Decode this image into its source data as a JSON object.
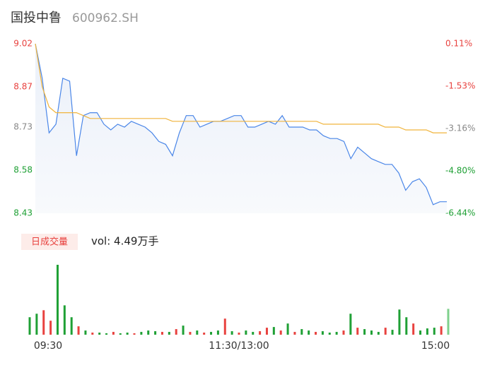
{
  "chart_data": [
    {
      "type": "line",
      "title": "国投中鲁",
      "subtitle": "600962.SH",
      "xlim": [
        0,
        240
      ],
      "x": [
        0,
        4,
        8,
        12,
        16,
        20,
        24,
        28,
        32,
        36,
        40,
        44,
        48,
        52,
        56,
        60,
        64,
        68,
        72,
        76,
        80,
        84,
        88,
        92,
        96,
        100,
        104,
        108,
        112,
        116,
        120,
        124,
        128,
        132,
        136,
        140,
        144,
        148,
        152,
        156,
        160,
        164,
        168,
        172,
        176,
        180,
        184,
        188,
        192,
        196,
        200,
        204,
        208,
        212,
        216,
        220,
        224,
        228,
        232,
        236,
        240
      ],
      "ylim": [
        8.43,
        9.02
      ],
      "yticks": [
        {
          "value": 8.43,
          "label": "8.43"
        },
        {
          "value": 8.58,
          "label": "8.58"
        },
        {
          "value": 8.73,
          "label": "8.73"
        },
        {
          "value": 8.87,
          "label": "8.87"
        },
        {
          "value": 9.02,
          "label": "9.02"
        }
      ],
      "ytick_colors": [
        "#1fa035",
        "#1fa035",
        "#888888",
        "#e8423f",
        "#e8423f"
      ],
      "y2lim": [
        -6.44,
        0.11
      ],
      "y2ticks": [
        {
          "value": -6.44,
          "label": "-6.44%"
        },
        {
          "value": -4.8,
          "label": "-4.80%"
        },
        {
          "value": -3.16,
          "label": "-3.16%"
        },
        {
          "value": -1.53,
          "label": "-1.53%"
        },
        {
          "value": 0.11,
          "label": "0.11%"
        }
      ],
      "y2tick_colors": [
        "#1fa035",
        "#1fa035",
        "#888888",
        "#e8423f",
        "#e8423f"
      ],
      "series": [
        {
          "name": "price",
          "color": "#4a86e8",
          "values": [
            9.02,
            8.9,
            8.71,
            8.74,
            8.9,
            8.89,
            8.63,
            8.77,
            8.78,
            8.78,
            8.74,
            8.72,
            8.74,
            8.73,
            8.75,
            8.74,
            8.73,
            8.71,
            8.68,
            8.67,
            8.63,
            8.71,
            8.77,
            8.77,
            8.73,
            8.74,
            8.75,
            8.75,
            8.76,
            8.77,
            8.77,
            8.73,
            8.73,
            8.74,
            8.75,
            8.74,
            8.77,
            8.73,
            8.73,
            8.73,
            8.72,
            8.72,
            8.7,
            8.69,
            8.69,
            8.68,
            8.62,
            8.66,
            8.64,
            8.62,
            8.61,
            8.6,
            8.6,
            8.57,
            8.51,
            8.54,
            8.55,
            8.52,
            8.46,
            8.47,
            8.47
          ]
        },
        {
          "name": "average",
          "color": "#f0b43c",
          "values": [
            9.02,
            8.87,
            8.8,
            8.78,
            8.78,
            8.78,
            8.78,
            8.77,
            8.76,
            8.76,
            8.76,
            8.76,
            8.76,
            8.76,
            8.76,
            8.76,
            8.76,
            8.76,
            8.76,
            8.76,
            8.75,
            8.75,
            8.75,
            8.75,
            8.75,
            8.75,
            8.75,
            8.75,
            8.75,
            8.75,
            8.75,
            8.75,
            8.75,
            8.75,
            8.75,
            8.75,
            8.75,
            8.75,
            8.75,
            8.75,
            8.75,
            8.75,
            8.74,
            8.74,
            8.74,
            8.74,
            8.74,
            8.74,
            8.74,
            8.74,
            8.74,
            8.73,
            8.73,
            8.73,
            8.72,
            8.72,
            8.72,
            8.72,
            8.71,
            8.71,
            8.71
          ]
        }
      ]
    },
    {
      "type": "bar",
      "badge": "日成交量",
      "label": "vol: 4.49万手",
      "xlim": [
        0,
        240
      ],
      "xticks": [
        {
          "value": 0,
          "label": "09:30"
        },
        {
          "value": 120,
          "label": "11:30/13:00"
        },
        {
          "value": 240,
          "label": "15:00"
        }
      ],
      "x": [
        0,
        4,
        8,
        12,
        16,
        20,
        24,
        28,
        32,
        36,
        40,
        44,
        48,
        52,
        56,
        60,
        64,
        68,
        72,
        76,
        80,
        84,
        88,
        92,
        96,
        100,
        104,
        108,
        112,
        116,
        120,
        124,
        128,
        132,
        136,
        140,
        144,
        148,
        152,
        156,
        160,
        164,
        168,
        172,
        176,
        180,
        184,
        188,
        192,
        196,
        200,
        204,
        208,
        212,
        216,
        220,
        224,
        228,
        232,
        236,
        240
      ],
      "ylim": [
        0,
        1000
      ],
      "values": [
        250,
        300,
        350,
        200,
        1000,
        420,
        250,
        120,
        60,
        30,
        30,
        20,
        40,
        20,
        30,
        20,
        40,
        60,
        50,
        40,
        40,
        80,
        130,
        40,
        60,
        30,
        40,
        60,
        230,
        50,
        30,
        60,
        40,
        50,
        100,
        110,
        60,
        160,
        40,
        80,
        60,
        40,
        50,
        30,
        40,
        60,
        300,
        100,
        80,
        60,
        40,
        100,
        70,
        360,
        250,
        160,
        60,
        90,
        100,
        120,
        370
      ],
      "colors": [
        "#1fa035",
        "#1fa035",
        "#e8423f",
        "#e8423f",
        "#1fa035",
        "#1fa035",
        "#1fa035",
        "#e8423f",
        "#1fa035",
        "#e8423f",
        "#1fa035",
        "#1fa035",
        "#e8423f",
        "#1fa035",
        "#1fa035",
        "#e8423f",
        "#1fa035",
        "#1fa035",
        "#1fa035",
        "#e8423f",
        "#1fa035",
        "#e8423f",
        "#1fa035",
        "#e8423f",
        "#1fa035",
        "#e8423f",
        "#1fa035",
        "#1fa035",
        "#e8423f",
        "#1fa035",
        "#e8423f",
        "#1fa035",
        "#1fa035",
        "#e8423f",
        "#e8423f",
        "#1fa035",
        "#e8423f",
        "#1fa035",
        "#e8423f",
        "#1fa035",
        "#1fa035",
        "#e8423f",
        "#1fa035",
        "#1fa035",
        "#1fa035",
        "#e8423f",
        "#1fa035",
        "#e8423f",
        "#1fa035",
        "#1fa035",
        "#1fa035",
        "#e8423f",
        "#1fa035",
        "#1fa035",
        "#1fa035",
        "#e8423f",
        "#1fa035",
        "#1fa035",
        "#1fa035",
        "#e8423f",
        "#7fd08c"
      ]
    }
  ]
}
